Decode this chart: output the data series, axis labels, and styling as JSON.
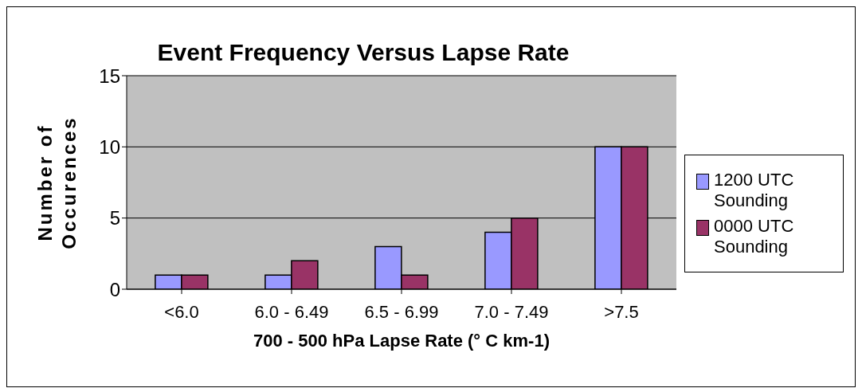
{
  "chart_data": {
    "type": "bar",
    "title": "Event Frequency Versus Lapse Rate",
    "xlabel": "700 - 500 hPa Lapse Rate (° C km-1)",
    "ylabel": "Number of Occurences",
    "categories": [
      "<6.0",
      "6.0 - 6.49",
      "6.5 - 6.99",
      "7.0 - 7.49",
      ">7.5"
    ],
    "series": [
      {
        "name": "1200 UTC Sounding",
        "color": "#9999ff",
        "values": [
          1,
          1,
          3,
          4,
          10
        ]
      },
      {
        "name": "0000 UTC Sounding",
        "color": "#993366",
        "values": [
          1,
          2,
          1,
          5,
          10
        ]
      }
    ],
    "ylim": [
      0,
      15
    ],
    "yticks": [
      0,
      5,
      10,
      15
    ],
    "grid": "y",
    "legend": "right"
  }
}
